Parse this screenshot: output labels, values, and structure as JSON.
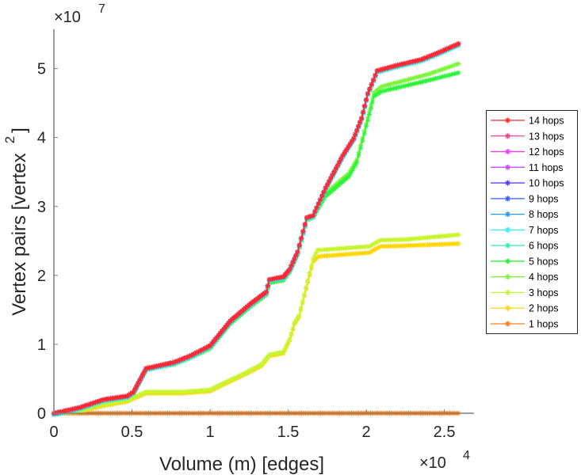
{
  "chart_data": {
    "type": "line",
    "title": "",
    "xlabel": "Volume (m) [edges]",
    "ylabel_main": "Vertex pairs [vertex",
    "ylabel_sup": "2",
    "ylabel_end": "]",
    "x_multiplier": {
      "base": "×10",
      "exp": "4"
    },
    "y_multiplier": {
      "base": "×10",
      "exp": "7"
    },
    "xlim": [
      0,
      26900
    ],
    "ylim": [
      0,
      55700000
    ],
    "xticks": [
      0,
      5000,
      10000,
      15000,
      20000,
      25000
    ],
    "xtick_labels": [
      "0",
      "0.5",
      "1",
      "1.5",
      "2",
      "2.5"
    ],
    "yticks": [
      0,
      10000000,
      20000000,
      30000000,
      40000000,
      50000000
    ],
    "ytick_labels": [
      "0",
      "1",
      "2",
      "3",
      "4",
      "5"
    ],
    "grid": false,
    "legend_position": "outside-right",
    "marker": "asterisk",
    "series": [
      {
        "name": "14 hops",
        "color": "#ff2b2b",
        "group": "top",
        "offset": 0
      },
      {
        "name": "13 hops",
        "color": "#ff3d8f",
        "group": "top",
        "offset": 0
      },
      {
        "name": "12 hops",
        "color": "#f53cf0",
        "group": "top",
        "offset": 0
      },
      {
        "name": "11 hops",
        "color": "#c94cff",
        "group": "top",
        "offset": 0
      },
      {
        "name": "10 hops",
        "color": "#5a3cff",
        "group": "top",
        "offset": 0
      },
      {
        "name": "9 hops",
        "color": "#3a5cff",
        "group": "top",
        "offset": 0
      },
      {
        "name": "8 hops",
        "color": "#2b9aff",
        "group": "top",
        "offset": -50000
      },
      {
        "name": "7 hops",
        "color": "#2ef0ff",
        "group": "top",
        "offset": -150000
      },
      {
        "name": "6 hops",
        "color": "#2ef5a8",
        "group": "top",
        "offset": -250000
      },
      {
        "name": "5 hops",
        "color": "#2ef53c",
        "group": "mid5",
        "offset": 0
      },
      {
        "name": "4 hops",
        "color": "#7df53c",
        "group": "mid4",
        "offset": 0
      },
      {
        "name": "3 hops",
        "color": "#c8f52e",
        "group": "low3",
        "offset": 0
      },
      {
        "name": "2 hops",
        "color": "#ffd60a",
        "group": "low2",
        "offset": 0
      },
      {
        "name": "1 hops",
        "color": "#ff7f1a",
        "group": "flat",
        "offset": 0
      }
    ],
    "groups": {
      "top": {
        "x": [
          0,
          1600,
          3200,
          4700,
          5100,
          5500,
          5900,
          6700,
          7700,
          8700,
          10000,
          11300,
          12600,
          13600,
          13800,
          14700,
          15100,
          15600,
          16200,
          16600,
          17400,
          18500,
          19200,
          19700,
          20100,
          20700,
          22000,
          23500,
          24500,
          25900
        ],
        "y": [
          0,
          800000,
          2000000,
          2500000,
          3100000,
          4800000,
          6500000,
          6900000,
          7400000,
          8300000,
          9800000,
          13400000,
          15900000,
          17600000,
          19400000,
          19800000,
          20900000,
          23400000,
          28400000,
          28700000,
          32700000,
          37400000,
          39900000,
          42800000,
          46400000,
          49700000,
          50500000,
          51300000,
          52200000,
          53600000
        ]
      },
      "mid5": {
        "x": [
          0,
          1600,
          3200,
          4700,
          5100,
          5500,
          5900,
          6700,
          7700,
          8700,
          10000,
          11300,
          12600,
          13600,
          13800,
          14700,
          15100,
          15600,
          16200,
          16600,
          17400,
          18900,
          19400,
          20000,
          20500,
          21000,
          22500,
          24000,
          25900
        ],
        "y": [
          0,
          700000,
          1900000,
          2400000,
          3000000,
          4700000,
          6400000,
          6700000,
          7100000,
          8000000,
          9400000,
          13000000,
          15500000,
          17200000,
          18900000,
          19300000,
          20500000,
          23000000,
          28000000,
          28400000,
          31500000,
          34400000,
          36400000,
          41600000,
          46000000,
          46700000,
          47500000,
          48300000,
          49400000
        ]
      },
      "mid4": {
        "x": [
          0,
          1600,
          3200,
          4700,
          5100,
          5500,
          5900,
          6700,
          7700,
          8700,
          10000,
          11300,
          12600,
          13600,
          13800,
          14700,
          15100,
          15600,
          16200,
          16600,
          17400,
          18900,
          19400,
          20000,
          20500,
          21000,
          22500,
          24000,
          25900
        ],
        "y": [
          0,
          750000,
          1950000,
          2450000,
          3050000,
          4750000,
          6450000,
          6800000,
          7250000,
          8150000,
          9600000,
          13200000,
          15700000,
          17400000,
          19100000,
          19500000,
          20700000,
          23200000,
          28200000,
          28600000,
          31900000,
          34800000,
          36800000,
          42000000,
          46500000,
          47400000,
          48300000,
          49200000,
          50700000
        ]
      },
      "low3": {
        "x": [
          0,
          1600,
          3200,
          4700,
          5900,
          8200,
          10000,
          10800,
          12300,
          13300,
          13800,
          14700,
          15100,
          15400,
          15700,
          16600,
          16900,
          17200,
          20200,
          20900,
          22500,
          25900
        ],
        "y": [
          0,
          300000,
          1300000,
          1900000,
          3100000,
          3100000,
          3400000,
          4300000,
          5900000,
          7100000,
          8500000,
          8900000,
          10800000,
          13100000,
          14200000,
          22400000,
          23700000,
          23700000,
          24200000,
          25100000,
          25200000,
          25900000
        ]
      },
      "low2": {
        "x": [
          0,
          1600,
          3200,
          4700,
          5900,
          8200,
          10000,
          10800,
          12300,
          13300,
          13800,
          14700,
          15100,
          15400,
          15700,
          16600,
          16900,
          17200,
          20200,
          20900,
          22500,
          25900
        ],
        "y": [
          0,
          200000,
          1100000,
          1700000,
          2900000,
          2900000,
          3200000,
          4100000,
          5700000,
          6900000,
          8300000,
          8700000,
          10600000,
          12900000,
          14000000,
          22000000,
          22700000,
          22800000,
          23300000,
          24200000,
          24300000,
          24600000
        ]
      },
      "flat": {
        "x": [
          0,
          25900
        ],
        "y": [
          0,
          0
        ]
      }
    }
  }
}
